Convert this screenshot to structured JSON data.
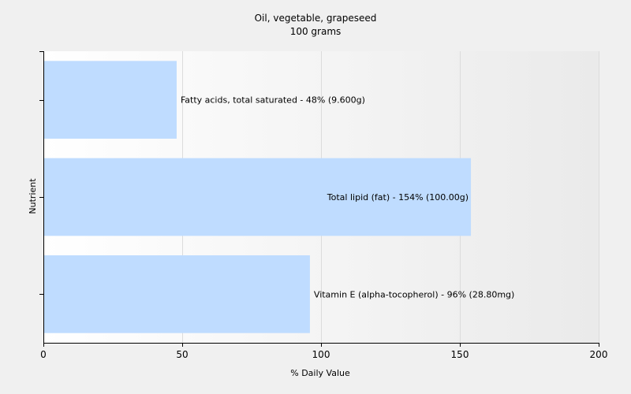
{
  "chart_data": {
    "type": "bar",
    "orientation": "horizontal",
    "title": "Oil, vegetable, grapeseed",
    "subtitle": "100 grams",
    "xlabel": "% Daily Value",
    "ylabel": "Nutrient",
    "xlim": [
      0,
      200
    ],
    "xticks": [
      0,
      50,
      100,
      150,
      200
    ],
    "grid": true,
    "bar_color": "#bfdcff",
    "categories": [
      "Fatty acids, total saturated",
      "Total lipid (fat)",
      "Vitamin E (alpha-tocopherol)"
    ],
    "values": [
      48,
      154,
      96
    ],
    "bar_labels": [
      "Fatty acids, total saturated - 48% (9.600g)",
      "Total lipid (fat) - 154% (100.00g)",
      "Vitamin E (alpha-tocopherol) - 96% (28.80mg)"
    ]
  }
}
